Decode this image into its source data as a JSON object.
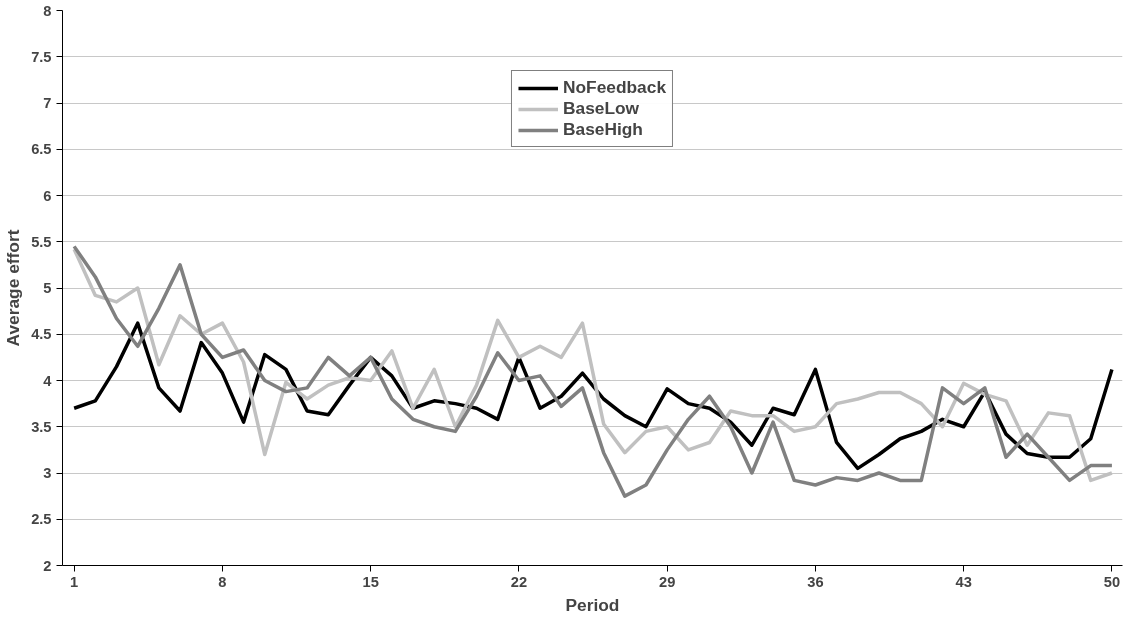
{
  "chart_data": {
    "type": "line",
    "xlabel": "Period",
    "ylabel": "Average effort",
    "x": [
      1,
      2,
      3,
      4,
      5,
      6,
      7,
      8,
      9,
      10,
      11,
      12,
      13,
      14,
      15,
      16,
      17,
      18,
      19,
      20,
      21,
      22,
      23,
      24,
      25,
      26,
      27,
      28,
      29,
      30,
      31,
      32,
      33,
      34,
      35,
      36,
      37,
      38,
      39,
      40,
      41,
      42,
      43,
      44,
      45,
      46,
      47,
      48,
      49,
      50
    ],
    "series": [
      {
        "name": "NoFeedback",
        "color": "#000000",
        "values": [
          3.7,
          3.78,
          4.15,
          4.62,
          3.92,
          3.67,
          4.41,
          4.08,
          3.55,
          4.28,
          4.12,
          3.67,
          3.63,
          3.95,
          4.25,
          4.05,
          3.7,
          3.78,
          3.75,
          3.7,
          3.58,
          4.25,
          3.7,
          3.83,
          4.08,
          3.8,
          3.62,
          3.5,
          3.91,
          3.75,
          3.7,
          3.55,
          3.3,
          3.7,
          3.63,
          4.12,
          3.33,
          3.05,
          3.2,
          3.37,
          3.45,
          3.58,
          3.5,
          3.88,
          3.42,
          3.21,
          3.17,
          3.17,
          3.37,
          4.12
        ]
      },
      {
        "name": "BaseLow",
        "color": "#c0c0c0",
        "values": [
          5.42,
          4.92,
          4.85,
          5.0,
          4.17,
          4.7,
          4.5,
          4.62,
          4.2,
          3.2,
          3.98,
          3.8,
          3.95,
          4.03,
          4.0,
          4.32,
          3.7,
          4.12,
          3.5,
          3.95,
          4.65,
          4.25,
          4.37,
          4.25,
          4.62,
          3.53,
          3.22,
          3.45,
          3.5,
          3.25,
          3.33,
          3.67,
          3.62,
          3.62,
          3.45,
          3.5,
          3.75,
          3.8,
          3.87,
          3.87,
          3.75,
          3.5,
          3.97,
          3.85,
          3.78,
          3.3,
          3.65,
          3.62,
          2.92,
          3.0
        ]
      },
      {
        "name": "BaseHigh",
        "color": "#808080",
        "values": [
          5.45,
          5.12,
          4.67,
          4.37,
          4.78,
          5.25,
          4.5,
          4.25,
          4.33,
          4.0,
          3.88,
          3.92,
          4.25,
          4.05,
          4.25,
          3.8,
          3.58,
          3.5,
          3.45,
          3.83,
          4.3,
          4.0,
          4.05,
          3.72,
          3.92,
          3.22,
          2.75,
          2.87,
          3.25,
          3.58,
          3.83,
          3.5,
          3.0,
          3.55,
          2.92,
          2.87,
          2.95,
          2.92,
          3.0,
          2.92,
          2.92,
          3.92,
          3.75,
          3.92,
          3.17,
          3.42,
          3.17,
          2.92,
          3.08,
          3.08
        ]
      }
    ],
    "xlim": [
      0.45,
      50.5
    ],
    "xticks": [
      1,
      8,
      15,
      22,
      29,
      36,
      43,
      50
    ],
    "ylim": [
      2,
      8
    ],
    "yticks": [
      2,
      2.5,
      3,
      3.5,
      4,
      4.5,
      5,
      5.5,
      6,
      6.5,
      7,
      7.5,
      8
    ],
    "grid": "y",
    "legend": "top",
    "marker": "none",
    "line_style": "solid"
  }
}
